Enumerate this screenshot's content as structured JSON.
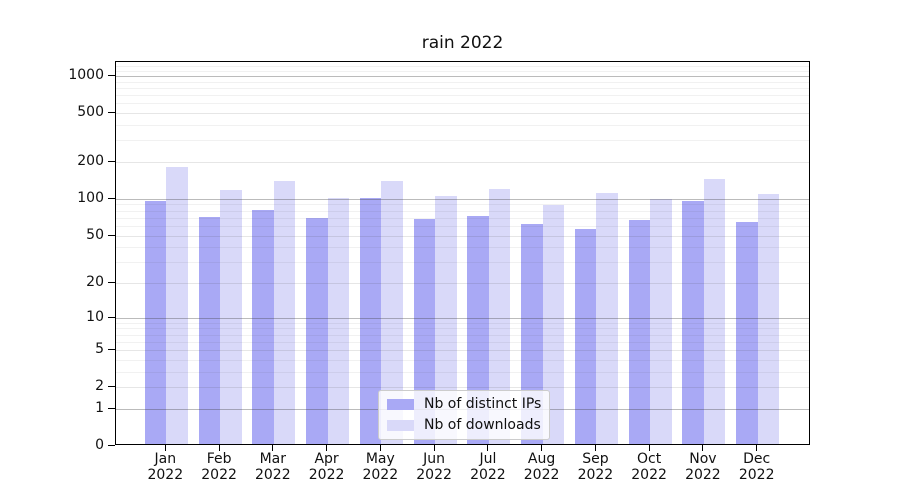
{
  "chart_data": {
    "type": "bar",
    "title": "rain 2022",
    "categories": [
      "Jan 2022",
      "Feb 2022",
      "Mar 2022",
      "Apr 2022",
      "May 2022",
      "Jun 2022",
      "Jul 2022",
      "Aug 2022",
      "Sep 2022",
      "Oct 2022",
      "Nov 2022",
      "Dec 2022"
    ],
    "series": [
      {
        "name": "Nb of distinct IPs",
        "color": "#a9a9f5",
        "values": [
          92,
          68,
          78,
          67,
          98,
          66,
          70,
          60,
          54,
          65,
          92,
          62
        ]
      },
      {
        "name": "Nb of downloads",
        "color": "#d9d9f9",
        "values": [
          174,
          114,
          134,
          98,
          136,
          102,
          116,
          86,
          107,
          96,
          140,
          106
        ]
      }
    ],
    "xlabel": "",
    "ylabel": "",
    "yscale": {
      "type": "symlog-log1p",
      "ylim": [
        0,
        1300
      ],
      "yticks": [
        0,
        1,
        2,
        5,
        10,
        20,
        50,
        100,
        200,
        500,
        1000
      ],
      "minor_gridlines": [
        3,
        4,
        6,
        7,
        8,
        9,
        30,
        40,
        60,
        70,
        80,
        90,
        300,
        400,
        600,
        700,
        800,
        900,
        1100,
        1200
      ],
      "decade_gridlines": [
        1,
        10,
        100,
        1000
      ]
    },
    "grid": true,
    "legend": {
      "position": "lower center",
      "entries": [
        "Nb of distinct IPs",
        "Nb of downloads"
      ]
    }
  }
}
